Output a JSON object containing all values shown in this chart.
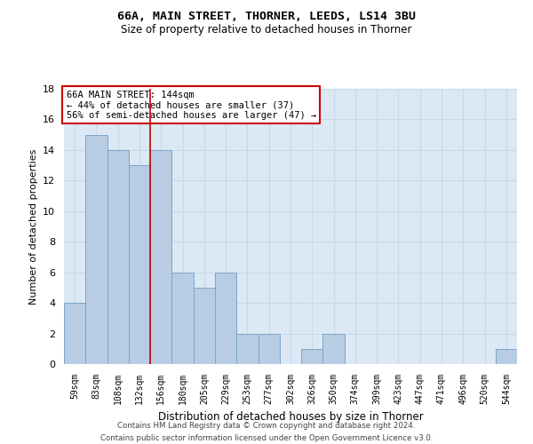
{
  "title_line1": "66A, MAIN STREET, THORNER, LEEDS, LS14 3BU",
  "title_line2": "Size of property relative to detached houses in Thorner",
  "xlabel": "Distribution of detached houses by size in Thorner",
  "ylabel": "Number of detached properties",
  "categories": [
    "59sqm",
    "83sqm",
    "108sqm",
    "132sqm",
    "156sqm",
    "180sqm",
    "205sqm",
    "229sqm",
    "253sqm",
    "277sqm",
    "302sqm",
    "326sqm",
    "350sqm",
    "374sqm",
    "399sqm",
    "423sqm",
    "447sqm",
    "471sqm",
    "496sqm",
    "520sqm",
    "544sqm"
  ],
  "values": [
    4,
    15,
    14,
    13,
    14,
    6,
    5,
    6,
    2,
    2,
    0,
    1,
    2,
    0,
    0,
    0,
    0,
    0,
    0,
    0,
    1
  ],
  "bar_color": "#b8cce4",
  "bar_edge_color": "#7ca6c8",
  "bar_width": 1.0,
  "vline_x": 3.5,
  "vline_color": "#cc0000",
  "ylim": [
    0,
    18
  ],
  "yticks": [
    0,
    2,
    4,
    6,
    8,
    10,
    12,
    14,
    16,
    18
  ],
  "annotation_text": "66A MAIN STREET: 144sqm\n← 44% of detached houses are smaller (37)\n56% of semi-detached houses are larger (47) →",
  "annotation_box_color": "#ffffff",
  "annotation_box_edge": "#cc0000",
  "footnote_line1": "Contains HM Land Registry data © Crown copyright and database right 2024.",
  "footnote_line2": "Contains public sector information licensed under the Open Government Licence v3.0.",
  "bg_color": "#ffffff",
  "grid_color": "#c8d8e8",
  "fig_width": 6.0,
  "fig_height": 5.0
}
